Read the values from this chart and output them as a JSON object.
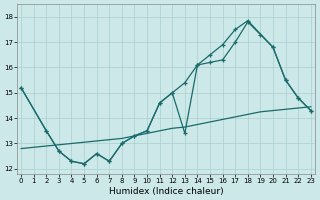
{
  "bg_color": "#cce8e8",
  "line_color": "#1a6b6b",
  "grid_color": "#aacfcf",
  "xlabel": "Humidex (Indice chaleur)",
  "ylim": [
    11.8,
    18.5
  ],
  "xlim": [
    -0.3,
    23.3
  ],
  "yticks": [
    12,
    13,
    14,
    15,
    16,
    17,
    18
  ],
  "xticks": [
    0,
    1,
    2,
    3,
    4,
    5,
    6,
    7,
    8,
    9,
    10,
    11,
    12,
    13,
    14,
    15,
    16,
    17,
    18,
    19,
    20,
    21,
    22,
    23
  ],
  "line_bottom_x": [
    0,
    1,
    2,
    3,
    4,
    5,
    6,
    7,
    8,
    9,
    10,
    11,
    12,
    13,
    14,
    15,
    16,
    17,
    18,
    19,
    20,
    21,
    22,
    23
  ],
  "line_bottom_y": [
    12.8,
    12.85,
    12.9,
    12.95,
    13.0,
    13.05,
    13.1,
    13.15,
    13.2,
    13.3,
    13.4,
    13.5,
    13.6,
    13.65,
    13.75,
    13.85,
    13.95,
    14.05,
    14.15,
    14.25,
    14.3,
    14.35,
    14.4,
    14.45
  ],
  "line_mid_x": [
    0,
    2,
    3,
    4,
    5,
    6,
    7,
    8,
    9,
    10,
    11,
    12,
    13,
    14,
    15,
    16,
    17,
    18,
    19,
    20,
    21,
    22,
    23
  ],
  "line_mid_y": [
    15.2,
    13.5,
    12.7,
    12.3,
    12.2,
    12.6,
    12.3,
    13.0,
    13.3,
    13.5,
    14.6,
    15.0,
    13.4,
    16.1,
    16.2,
    16.3,
    17.0,
    17.8,
    17.3,
    16.8,
    15.5,
    14.8,
    14.3
  ],
  "line_top_x": [
    0,
    2,
    3,
    4,
    5,
    6,
    7,
    8,
    9,
    10,
    11,
    12,
    13,
    14,
    15,
    16,
    17,
    18,
    20,
    21,
    22,
    23
  ],
  "line_top_y": [
    15.2,
    13.5,
    12.7,
    12.3,
    12.2,
    12.6,
    12.3,
    13.0,
    13.3,
    13.5,
    14.6,
    15.0,
    15.4,
    16.1,
    16.5,
    16.9,
    17.5,
    17.85,
    16.8,
    15.5,
    14.8,
    14.3
  ]
}
